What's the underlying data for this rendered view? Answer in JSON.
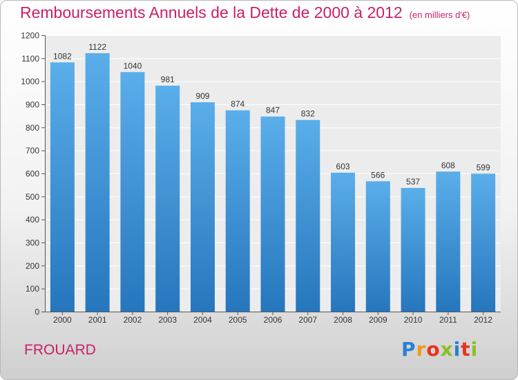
{
  "header": {
    "title": "Remboursements Annuels de la Dette de 2000 à 2012",
    "unit": "(en milliers d'€)"
  },
  "footer": {
    "location": "FROUARD",
    "logo": {
      "letters": [
        "P",
        "r",
        "o",
        "x",
        "i",
        "t",
        "i"
      ],
      "colors": [
        "#2b7fd4",
        "#f29a1c",
        "#e6331f",
        "#8cbf26",
        "#2b7fd4",
        "#e6331f",
        "#8cbf26"
      ]
    }
  },
  "chart_data": {
    "type": "bar",
    "title": "Remboursements Annuels de la Dette de 2000 à 2012",
    "ylabel": "en milliers d'€",
    "xlabel": "",
    "categories": [
      "2000",
      "2001",
      "2002",
      "2003",
      "2004",
      "2005",
      "2006",
      "2007",
      "2008",
      "2009",
      "2010",
      "2011",
      "2012"
    ],
    "values": [
      1082,
      1122,
      1040,
      981,
      909,
      874,
      847,
      832,
      603,
      566,
      537,
      608,
      599
    ],
    "ylim": [
      0,
      1200
    ],
    "yticks": [
      0,
      100,
      200,
      300,
      400,
      500,
      600,
      700,
      800,
      900,
      1000,
      1100,
      1200
    ],
    "grid": true,
    "bar_color": "#3d8fd6"
  }
}
